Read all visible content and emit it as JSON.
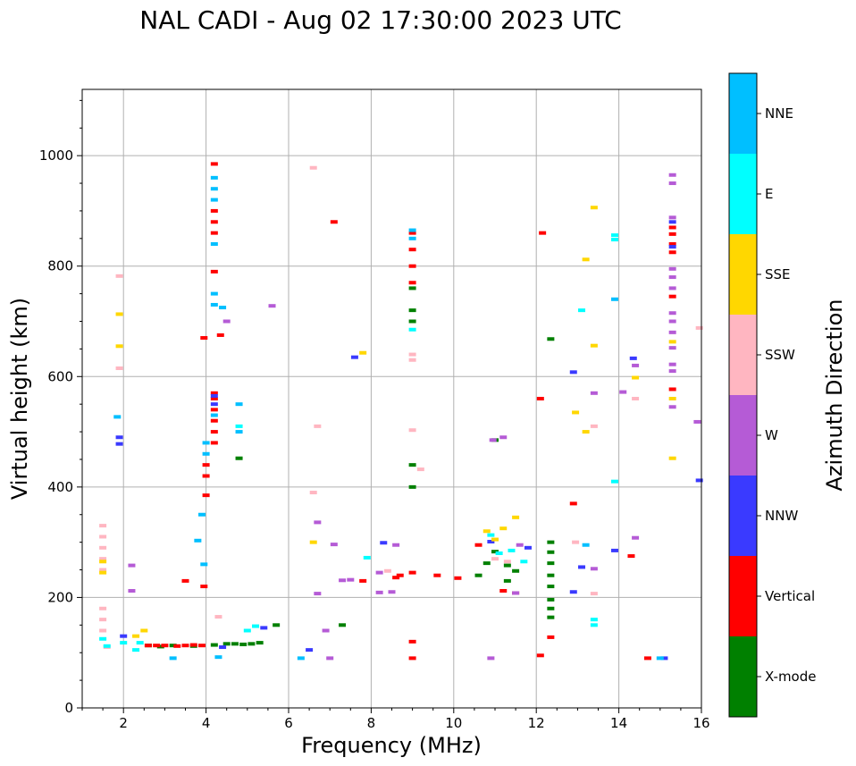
{
  "chart_data": {
    "type": "scatter",
    "title": "NAL CADI - Aug 02 17:30:00 2023 UTC",
    "xlabel": "Frequency (MHz)",
    "ylabel": "Virtual height (km)",
    "xlim": [
      1,
      16
    ],
    "ylim": [
      0,
      1120
    ],
    "xticks": [
      2,
      4,
      6,
      8,
      10,
      12,
      14,
      16
    ],
    "yticks": [
      0,
      200,
      400,
      600,
      800,
      1000
    ],
    "grid": true,
    "colorbar": {
      "label": "Azimuth Direction",
      "categories": [
        {
          "name": "X-mode",
          "color": "#008000"
        },
        {
          "name": "Vertical",
          "color": "#ff0000"
        },
        {
          "name": "NNW",
          "color": "#3a3aff"
        },
        {
          "name": "W",
          "color": "#b55bd6"
        },
        {
          "name": "SSW",
          "color": "#ffb6c1"
        },
        {
          "name": "SSE",
          "color": "#ffd700"
        },
        {
          "name": "E",
          "color": "#00ffff"
        },
        {
          "name": "NNE",
          "color": "#00bfff"
        }
      ]
    },
    "series": [
      {
        "name": "X-mode",
        "points": [
          [
            2.6,
            113
          ],
          [
            2.9,
            111
          ],
          [
            3.2,
            113
          ],
          [
            3.7,
            112
          ],
          [
            4.2,
            114
          ],
          [
            4.5,
            116
          ],
          [
            4.7,
            116
          ],
          [
            4.9,
            115
          ],
          [
            5.1,
            116
          ],
          [
            5.3,
            118
          ],
          [
            4.8,
            452
          ],
          [
            9.0,
            400
          ],
          [
            9.0,
            440
          ],
          [
            9.0,
            700
          ],
          [
            9.0,
            720
          ],
          [
            9.0,
            760
          ],
          [
            10.6,
            240
          ],
          [
            10.8,
            262
          ],
          [
            11.0,
            283
          ],
          [
            11.0,
            485
          ],
          [
            11.3,
            258
          ],
          [
            11.3,
            230
          ],
          [
            11.5,
            248
          ],
          [
            12.35,
            300
          ],
          [
            12.35,
            282
          ],
          [
            12.35,
            262
          ],
          [
            12.35,
            240
          ],
          [
            12.35,
            220
          ],
          [
            12.35,
            196
          ],
          [
            12.35,
            180
          ],
          [
            12.35,
            164
          ],
          [
            12.35,
            668
          ],
          [
            7.3,
            150
          ],
          [
            5.7,
            150
          ]
        ]
      },
      {
        "name": "Vertical",
        "points": [
          [
            2.6,
            113
          ],
          [
            2.8,
            113
          ],
          [
            3.0,
            113
          ],
          [
            3.3,
            112
          ],
          [
            3.5,
            113
          ],
          [
            3.7,
            114
          ],
          [
            3.9,
            113
          ],
          [
            3.5,
            230
          ],
          [
            3.95,
            220
          ],
          [
            3.95,
            670
          ],
          [
            4.0,
            385
          ],
          [
            4.0,
            420
          ],
          [
            4.0,
            440
          ],
          [
            4.2,
            570
          ],
          [
            4.2,
            560
          ],
          [
            4.2,
            540
          ],
          [
            4.2,
            520
          ],
          [
            4.2,
            500
          ],
          [
            4.2,
            480
          ],
          [
            4.2,
            860
          ],
          [
            4.2,
            880
          ],
          [
            4.2,
            900
          ],
          [
            4.2,
            985
          ],
          [
            4.2,
            790
          ],
          [
            4.35,
            675
          ],
          [
            7.1,
            880
          ],
          [
            7.8,
            230
          ],
          [
            9.0,
            120
          ],
          [
            9.0,
            90
          ],
          [
            9.0,
            245
          ],
          [
            9.0,
            800
          ],
          [
            9.0,
            770
          ],
          [
            9.0,
            830
          ],
          [
            9.0,
            860
          ],
          [
            9.6,
            240
          ],
          [
            10.1,
            235
          ],
          [
            10.6,
            295
          ],
          [
            11.2,
            212
          ],
          [
            11.5,
            208
          ],
          [
            12.1,
            95
          ],
          [
            12.15,
            860
          ],
          [
            12.1,
            560
          ],
          [
            12.35,
            128
          ],
          [
            12.9,
            370
          ],
          [
            14.3,
            275
          ],
          [
            14.7,
            90
          ],
          [
            15.3,
            577
          ],
          [
            15.3,
            825
          ],
          [
            15.3,
            840
          ],
          [
            15.3,
            858
          ],
          [
            15.3,
            870
          ],
          [
            15.3,
            745
          ],
          [
            8.7,
            240
          ],
          [
            8.6,
            236
          ]
        ]
      },
      {
        "name": "NNW",
        "points": [
          [
            1.9,
            490
          ],
          [
            1.9,
            478
          ],
          [
            4.2,
            565
          ],
          [
            4.2,
            550
          ],
          [
            4.4,
            110
          ],
          [
            5.4,
            145
          ],
          [
            7.6,
            635
          ],
          [
            8.3,
            299
          ],
          [
            10.9,
            301
          ],
          [
            11.8,
            290
          ],
          [
            12.9,
            608
          ],
          [
            13.1,
            255
          ],
          [
            13.9,
            285
          ],
          [
            14.35,
            633
          ],
          [
            15.3,
            835
          ],
          [
            15.3,
            880
          ],
          [
            15.95,
            412
          ],
          [
            15.1,
            90
          ],
          [
            12.9,
            210
          ],
          [
            2.0,
            130
          ],
          [
            6.5,
            105
          ]
        ]
      },
      {
        "name": "W",
        "points": [
          [
            2.2,
            212
          ],
          [
            2.2,
            258
          ],
          [
            4.5,
            700
          ],
          [
            5.6,
            728
          ],
          [
            6.7,
            336
          ],
          [
            6.7,
            207
          ],
          [
            6.9,
            140
          ],
          [
            7.1,
            296
          ],
          [
            7.3,
            231
          ],
          [
            7.5,
            232
          ],
          [
            8.2,
            209
          ],
          [
            8.5,
            210
          ],
          [
            8.6,
            295
          ],
          [
            8.2,
            245
          ],
          [
            10.95,
            485
          ],
          [
            11.2,
            490
          ],
          [
            11.5,
            208
          ],
          [
            11.6,
            295
          ],
          [
            13.4,
            570
          ],
          [
            13.4,
            252
          ],
          [
            14.1,
            572
          ],
          [
            14.4,
            620
          ],
          [
            14.4,
            308
          ],
          [
            15.3,
            965
          ],
          [
            15.3,
            950
          ],
          [
            15.3,
            888
          ],
          [
            15.3,
            795
          ],
          [
            15.3,
            780
          ],
          [
            15.3,
            760
          ],
          [
            15.3,
            715
          ],
          [
            15.3,
            700
          ],
          [
            15.3,
            680
          ],
          [
            15.3,
            652
          ],
          [
            15.3,
            622
          ],
          [
            15.3,
            610
          ],
          [
            15.3,
            545
          ],
          [
            15.9,
            518
          ],
          [
            7.0,
            90
          ],
          [
            10.9,
            90
          ]
        ]
      },
      {
        "name": "SSW",
        "points": [
          [
            1.5,
            330
          ],
          [
            1.5,
            310
          ],
          [
            1.5,
            290
          ],
          [
            1.5,
            270
          ],
          [
            1.5,
            250
          ],
          [
            1.5,
            180
          ],
          [
            1.5,
            160
          ],
          [
            1.5,
            140
          ],
          [
            1.9,
            615
          ],
          [
            1.9,
            782
          ],
          [
            6.6,
            978
          ],
          [
            6.6,
            390
          ],
          [
            6.7,
            510
          ],
          [
            9.0,
            640
          ],
          [
            9.0,
            630
          ],
          [
            9.0,
            503
          ],
          [
            9.2,
            432
          ],
          [
            8.4,
            248
          ],
          [
            11.0,
            270
          ],
          [
            11.3,
            265
          ],
          [
            12.95,
            300
          ],
          [
            13.4,
            510
          ],
          [
            13.4,
            207
          ],
          [
            14.4,
            560
          ],
          [
            15.95,
            688
          ],
          [
            4.3,
            165
          ],
          [
            1.6,
            110
          ]
        ]
      },
      {
        "name": "SSE",
        "points": [
          [
            1.5,
            265
          ],
          [
            1.5,
            245
          ],
          [
            1.9,
            713
          ],
          [
            1.9,
            655
          ],
          [
            2.3,
            130
          ],
          [
            2.5,
            140
          ],
          [
            6.6,
            300
          ],
          [
            7.8,
            643
          ],
          [
            10.8,
            320
          ],
          [
            11.0,
            305
          ],
          [
            11.2,
            325
          ],
          [
            11.5,
            345
          ],
          [
            12.95,
            535
          ],
          [
            13.2,
            812
          ],
          [
            13.4,
            906
          ],
          [
            13.4,
            656
          ],
          [
            14.4,
            598
          ],
          [
            15.3,
            663
          ],
          [
            15.3,
            560
          ],
          [
            15.3,
            452
          ],
          [
            13.2,
            500
          ]
        ]
      },
      {
        "name": "E",
        "points": [
          [
            1.5,
            125
          ],
          [
            1.6,
            112
          ],
          [
            2.0,
            118
          ],
          [
            2.3,
            105
          ],
          [
            2.4,
            118
          ],
          [
            4.8,
            510
          ],
          [
            5.0,
            140
          ],
          [
            5.2,
            148
          ],
          [
            7.9,
            272
          ],
          [
            9.0,
            685
          ],
          [
            10.9,
            313
          ],
          [
            11.1,
            280
          ],
          [
            11.4,
            285
          ],
          [
            11.7,
            265
          ],
          [
            13.1,
            720
          ],
          [
            13.9,
            410
          ],
          [
            13.9,
            856
          ],
          [
            13.9,
            848
          ],
          [
            13.4,
            160
          ],
          [
            13.4,
            150
          ]
        ]
      },
      {
        "name": "NNE",
        "points": [
          [
            1.85,
            527
          ],
          [
            3.8,
            303
          ],
          [
            3.9,
            350
          ],
          [
            3.95,
            260
          ],
          [
            4.0,
            480
          ],
          [
            4.0,
            460
          ],
          [
            4.2,
            960
          ],
          [
            4.2,
            940
          ],
          [
            4.2,
            920
          ],
          [
            4.2,
            750
          ],
          [
            4.2,
            730
          ],
          [
            4.2,
            840
          ],
          [
            4.2,
            530
          ],
          [
            4.4,
            725
          ],
          [
            4.8,
            550
          ],
          [
            4.8,
            500
          ],
          [
            3.2,
            90
          ],
          [
            4.3,
            92
          ],
          [
            6.3,
            90
          ],
          [
            9.0,
            865
          ],
          [
            9.0,
            850
          ],
          [
            13.2,
            295
          ],
          [
            13.9,
            740
          ],
          [
            15.0,
            90
          ]
        ]
      }
    ]
  }
}
